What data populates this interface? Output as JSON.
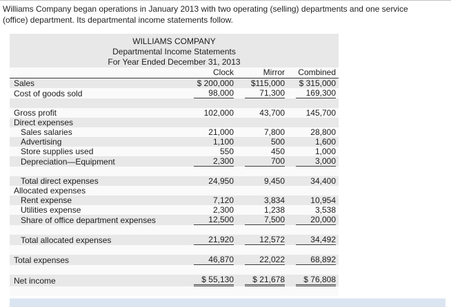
{
  "intro": "Williams Company began operations in January 2013 with two operating (selling) departments and one service (office) department. Its departmental income statements follow.",
  "statement": {
    "title": "WILLIAMS COMPANY",
    "subtitle": "Departmental Income Statements",
    "period": "For Year Ended December 31, 2013",
    "columns": [
      "Clock",
      "Mirror",
      "Combined"
    ],
    "rows": [
      {
        "label": "Sales",
        "indent": 0,
        "values": [
          "$ 200,000",
          "$115,000",
          "$ 315,000"
        ]
      },
      {
        "label": "Cost of goods sold",
        "indent": 0,
        "values": [
          "98,000",
          "71,300",
          "169,300"
        ],
        "rule": "single"
      },
      {
        "label": "",
        "indent": 0,
        "values": [
          "",
          "",
          ""
        ],
        "spacer": true
      },
      {
        "label": "Gross profit",
        "indent": 0,
        "values": [
          "102,000",
          "43,700",
          "145,700"
        ]
      },
      {
        "label": "Direct expenses",
        "indent": 0,
        "values": [
          "",
          "",
          ""
        ]
      },
      {
        "label": "Sales salaries",
        "indent": 1,
        "values": [
          "21,000",
          "7,800",
          "28,800"
        ]
      },
      {
        "label": "Advertising",
        "indent": 1,
        "values": [
          "1,100",
          "500",
          "1,600"
        ]
      },
      {
        "label": "Store supplies used",
        "indent": 1,
        "values": [
          "550",
          "450",
          "1,000"
        ]
      },
      {
        "label": "Depreciation—Equipment",
        "indent": 1,
        "values": [
          "2,300",
          "700",
          "3,000"
        ],
        "rule": "single"
      },
      {
        "label": "",
        "indent": 0,
        "values": [
          "",
          "",
          ""
        ],
        "spacer": true
      },
      {
        "label": "Total direct expenses",
        "indent": 1,
        "values": [
          "24,950",
          "9,450",
          "34,400"
        ]
      },
      {
        "label": "Allocated expenses",
        "indent": 0,
        "values": [
          "",
          "",
          ""
        ]
      },
      {
        "label": "Rent expense",
        "indent": 1,
        "values": [
          "7,120",
          "3,834",
          "10,954"
        ]
      },
      {
        "label": "Utilities expense",
        "indent": 1,
        "values": [
          "2,300",
          "1,238",
          "3,538"
        ]
      },
      {
        "label": "Share of office department expenses",
        "indent": 1,
        "values": [
          "12,500",
          "7,500",
          "20,000"
        ],
        "rule": "single"
      },
      {
        "label": "",
        "indent": 0,
        "values": [
          "",
          "",
          ""
        ],
        "spacer": true
      },
      {
        "label": "Total allocated expenses",
        "indent": 1,
        "values": [
          "21,920",
          "12,572",
          "34,492"
        ],
        "rule": "single"
      },
      {
        "label": "",
        "indent": 0,
        "values": [
          "",
          "",
          ""
        ],
        "spacer": true
      },
      {
        "label": "Total expenses",
        "indent": 0,
        "values": [
          "46,870",
          "22,022",
          "68,892"
        ],
        "rule": "single"
      },
      {
        "label": "",
        "indent": 0,
        "values": [
          "",
          "",
          ""
        ],
        "spacer": true
      },
      {
        "label": "Net income",
        "indent": 0,
        "values": [
          "$ 55,130",
          "$ 21,678",
          "$ 76,808"
        ],
        "rule": "double"
      },
      {
        "label": "",
        "indent": 0,
        "values": [
          "",
          "",
          ""
        ],
        "spacer": true
      }
    ]
  }
}
